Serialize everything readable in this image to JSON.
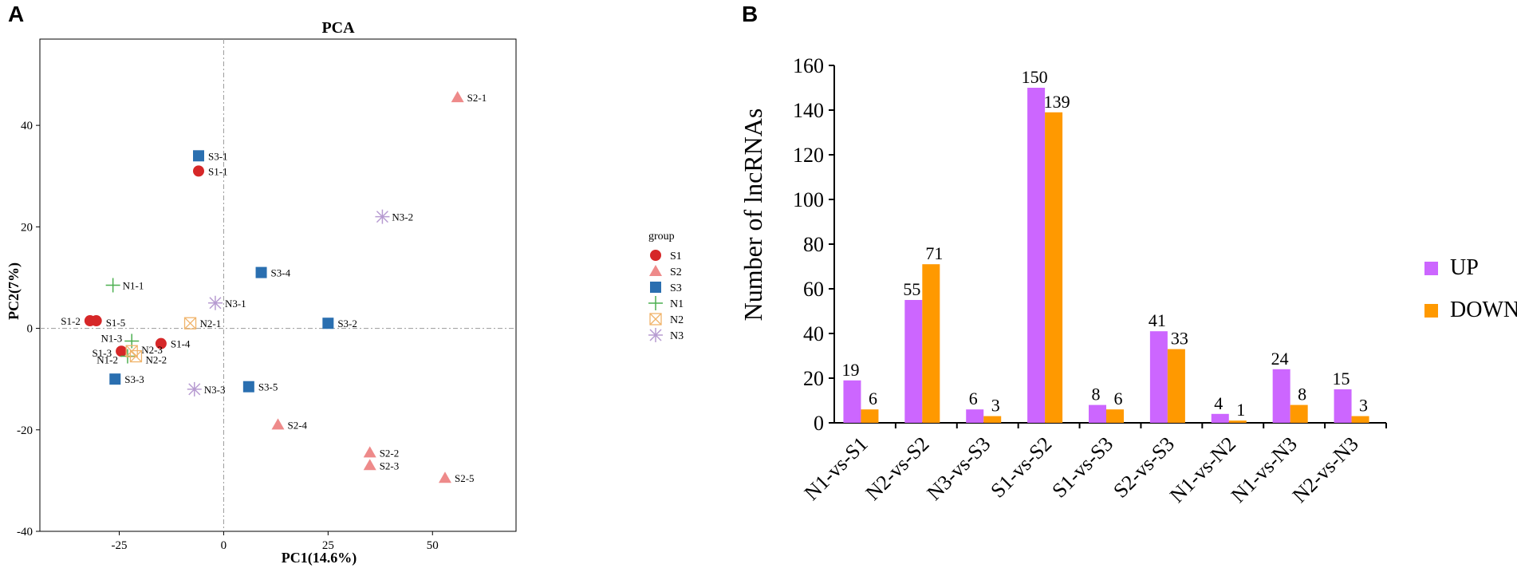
{
  "panels": {
    "a": "A",
    "b": "B"
  },
  "chart_data": [
    {
      "type": "scatter",
      "title": "PCA",
      "xlabel": "PC1(14.6%)",
      "ylabel": "PC2(7%)",
      "xlim": [
        -44,
        70
      ],
      "ylim": [
        -40,
        57
      ],
      "xticks": [
        -25,
        0,
        25,
        50
      ],
      "yticks": [
        -40,
        -20,
        0,
        20,
        40
      ],
      "legend_title": "group",
      "legend_position": "right",
      "groups": [
        {
          "name": "S1",
          "color": "#d62728",
          "marker": "circle"
        },
        {
          "name": "S2",
          "color": "#ee8a8a",
          "marker": "triangle"
        },
        {
          "name": "S3",
          "color": "#2a6fb0",
          "marker": "square"
        },
        {
          "name": "N1",
          "color": "#4caf50",
          "marker": "plus"
        },
        {
          "name": "N2",
          "color": "#f0b36a",
          "marker": "boxx"
        },
        {
          "name": "N3",
          "color": "#b79bd1",
          "marker": "asterisk"
        }
      ],
      "points": [
        {
          "label": "S1-1",
          "group": "S1",
          "x": -6,
          "y": 31
        },
        {
          "label": "S1-2",
          "group": "S1",
          "x": -32,
          "y": 1.5
        },
        {
          "label": "S1-5",
          "group": "S1",
          "x": -30.5,
          "y": 1.5
        },
        {
          "label": "S1-3",
          "group": "S1",
          "x": -24.5,
          "y": -4.5
        },
        {
          "label": "S1-4",
          "group": "S1",
          "x": -15,
          "y": -3
        },
        {
          "label": "S2-1",
          "group": "S2",
          "x": 56,
          "y": 45.5
        },
        {
          "label": "S2-4",
          "group": "S2",
          "x": 13,
          "y": -19
        },
        {
          "label": "S2-2",
          "group": "S2",
          "x": 35,
          "y": -24.5
        },
        {
          "label": "S2-3",
          "group": "S2",
          "x": 35,
          "y": -27
        },
        {
          "label": "S2-5",
          "group": "S2",
          "x": 53,
          "y": -29.5
        },
        {
          "label": "S3-1",
          "group": "S3",
          "x": -6,
          "y": 34
        },
        {
          "label": "S3-4",
          "group": "S3",
          "x": 9,
          "y": 11
        },
        {
          "label": "S3-2",
          "group": "S3",
          "x": 25,
          "y": 1
        },
        {
          "label": "S3-3",
          "group": "S3",
          "x": -26,
          "y": -10
        },
        {
          "label": "S3-5",
          "group": "S3",
          "x": 6,
          "y": -11.5
        },
        {
          "label": "N1-1",
          "group": "N1",
          "x": -26.5,
          "y": 8.5
        },
        {
          "label": "N1-3",
          "group": "N1",
          "x": -22,
          "y": -2.5
        },
        {
          "label": "N1-2",
          "group": "N1",
          "x": -23,
          "y": -5.5
        },
        {
          "label": "N2-1",
          "group": "N2",
          "x": -8,
          "y": 1
        },
        {
          "label": "N2-3",
          "group": "N2",
          "x": -22,
          "y": -4.5
        },
        {
          "label": "N2-2",
          "group": "N2",
          "x": -21,
          "y": -5.5
        },
        {
          "label": "N3-2",
          "group": "N3",
          "x": 38,
          "y": 22
        },
        {
          "label": "N3-1",
          "group": "N3",
          "x": -2,
          "y": 5
        },
        {
          "label": "N3-3",
          "group": "N3",
          "x": -7,
          "y": -12
        }
      ]
    },
    {
      "type": "bar",
      "title": "",
      "xlabel": "",
      "ylabel": "Number of lncRNAs",
      "ylim": [
        0,
        160
      ],
      "yticks": [
        0,
        20,
        40,
        60,
        80,
        100,
        120,
        140,
        160
      ],
      "legend_position": "right",
      "categories": [
        "N1-vs-S1",
        "N2-vs-S2",
        "N3-vs-S3",
        "S1-vs-S2",
        "S1-vs-S3",
        "S2-vs-S3",
        "N1-vs-N2",
        "N1-vs-N3",
        "N2-vs-N3"
      ],
      "series": [
        {
          "name": "UP",
          "color": "#cc66ff",
          "values": [
            19,
            55,
            6,
            150,
            8,
            41,
            4,
            24,
            15
          ]
        },
        {
          "name": "DOWN",
          "color": "#ff9900",
          "values": [
            6,
            71,
            3,
            139,
            6,
            33,
            1,
            8,
            3
          ]
        }
      ]
    }
  ]
}
